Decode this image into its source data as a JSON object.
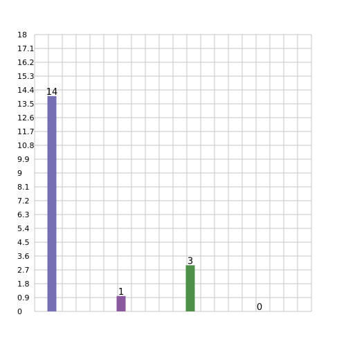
{
  "chart_data": {
    "type": "bar",
    "categories": [
      "",
      "",
      "",
      ""
    ],
    "values": [
      14,
      1,
      3,
      0
    ],
    "value_labels": [
      "14",
      "1",
      "3",
      "0"
    ],
    "colors": [
      "#7570b3",
      "#8b5a9e",
      "#4e8f47",
      "#9e9e9e"
    ],
    "ylim": [
      0,
      18
    ],
    "yticks": [
      "0",
      "0.9",
      "1.8",
      "2.7",
      "3.6",
      "4.5",
      "5.4",
      "6.3",
      "7.2",
      "8.1",
      "9",
      "9.9",
      "10.8",
      "11.7",
      "12.6",
      "13.5",
      "14.4",
      "15.3",
      "16.2",
      "17.1",
      "18"
    ],
    "grid": true,
    "grid_color": "#c4c4c4",
    "title": "",
    "xlabel": "",
    "ylabel": ""
  }
}
